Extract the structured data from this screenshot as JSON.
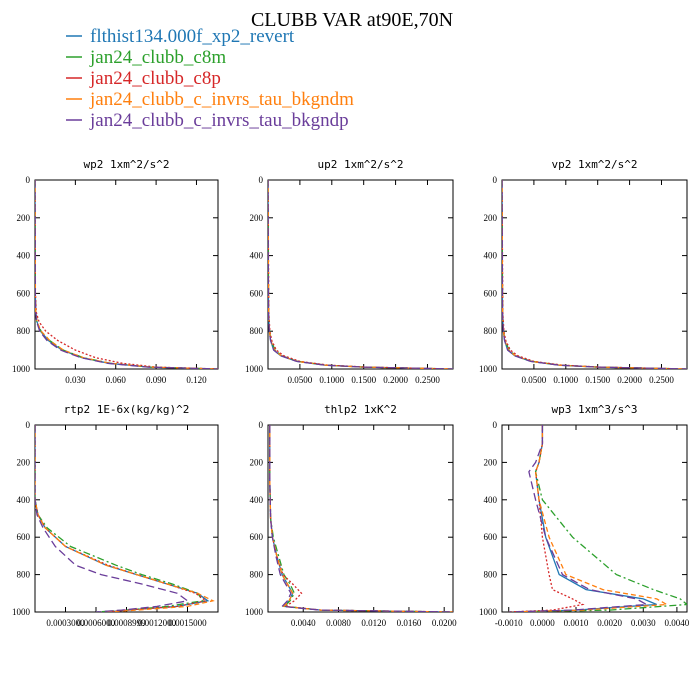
{
  "title": "CLUBB VAR at90E,70N",
  "legend": [
    {
      "label": "flthist134.000f_xp2_revert",
      "color": "#1f77b4",
      "dash": "solid"
    },
    {
      "label": "jan24_clubb_c8m",
      "color": "#2ca02c",
      "dash": "dashdot"
    },
    {
      "label": "jan24_clubb_c8p",
      "color": "#d62728",
      "dash": "dotted"
    },
    {
      "label": "jan24_clubb_c_invrs_tau_bkgndm",
      "color": "#ff7f0e",
      "dash": "dashed"
    },
    {
      "label": "jan24_clubb_c_invrs_tau_bkgndp",
      "color": "#6a3d9a",
      "dash": "longdash"
    }
  ],
  "chart_data": [
    {
      "type": "line",
      "title": "wp2  1xm^2/s^2",
      "xlim": [
        0,
        0.136
      ],
      "ylim": [
        1000,
        0
      ],
      "y_reversed": true,
      "xticks": [
        0.03,
        0.06,
        0.09,
        0.12
      ],
      "xtick_labels": [
        "0.030",
        "0.060",
        "0.090",
        "0.120"
      ],
      "yticks": [
        0,
        200,
        400,
        600,
        800,
        1000
      ],
      "ytick_labels": [
        "0",
        "200",
        "400",
        "600",
        "800",
        "1000"
      ],
      "series": [
        {
          "y": [
            0,
            600,
            700,
            750,
            800,
            850,
            900,
            940,
            970,
            990,
            1000
          ],
          "x": [
            0.0,
            0.0002,
            0.0006,
            0.0015,
            0.004,
            0.01,
            0.02,
            0.035,
            0.055,
            0.085,
            0.136
          ]
        },
        {
          "y": [
            0,
            600,
            700,
            750,
            800,
            850,
            900,
            940,
            970,
            990,
            1000
          ],
          "x": [
            0.0,
            0.0002,
            0.0006,
            0.0015,
            0.0045,
            0.011,
            0.021,
            0.036,
            0.056,
            0.086,
            0.136
          ]
        },
        {
          "y": [
            0,
            600,
            700,
            750,
            800,
            850,
            900,
            940,
            970,
            990,
            1000
          ],
          "x": [
            0.0,
            0.0003,
            0.001,
            0.003,
            0.008,
            0.017,
            0.03,
            0.045,
            0.065,
            0.09,
            0.136
          ]
        },
        {
          "y": [
            0,
            600,
            700,
            750,
            800,
            850,
            900,
            940,
            970,
            990,
            1000
          ],
          "x": [
            0.0,
            0.0002,
            0.0006,
            0.0015,
            0.0045,
            0.011,
            0.021,
            0.036,
            0.056,
            0.086,
            0.136
          ]
        },
        {
          "y": [
            0,
            600,
            700,
            750,
            800,
            850,
            900,
            940,
            970,
            990,
            1000
          ],
          "x": [
            0.0,
            0.0002,
            0.0005,
            0.0013,
            0.0035,
            0.009,
            0.019,
            0.034,
            0.054,
            0.084,
            0.136
          ]
        }
      ]
    },
    {
      "type": "line",
      "title": "up2  1xm^2/s^2",
      "xlim": [
        0,
        0.29
      ],
      "ylim": [
        1000,
        0
      ],
      "y_reversed": true,
      "xticks": [
        0.05,
        0.1,
        0.15,
        0.2,
        0.25
      ],
      "xtick_labels": [
        "0.0500",
        "0.1000",
        "0.1500",
        "0.2000",
        "0.2500"
      ],
      "yticks": [
        0,
        200,
        400,
        600,
        800,
        1000
      ],
      "ytick_labels": [
        "0",
        "200",
        "400",
        "600",
        "800",
        "1000"
      ],
      "series": [
        {
          "y": [
            0,
            700,
            800,
            850,
            900,
            930,
            960,
            980,
            990,
            1000
          ],
          "x": [
            0.0,
            0.0008,
            0.002,
            0.004,
            0.009,
            0.02,
            0.045,
            0.09,
            0.15,
            0.29
          ]
        },
        {
          "y": [
            0,
            700,
            800,
            850,
            900,
            930,
            960,
            980,
            990,
            1000
          ],
          "x": [
            0.0,
            0.001,
            0.0025,
            0.005,
            0.011,
            0.022,
            0.047,
            0.092,
            0.15,
            0.29
          ]
        },
        {
          "y": [
            0,
            700,
            800,
            850,
            900,
            930,
            960,
            980,
            990,
            1000
          ],
          "x": [
            0.0,
            0.0012,
            0.003,
            0.006,
            0.013,
            0.025,
            0.05,
            0.095,
            0.155,
            0.29
          ]
        },
        {
          "y": [
            0,
            700,
            800,
            850,
            900,
            930,
            960,
            980,
            990,
            1000
          ],
          "x": [
            0.0,
            0.0009,
            0.0022,
            0.0045,
            0.01,
            0.021,
            0.046,
            0.091,
            0.15,
            0.29
          ]
        },
        {
          "y": [
            0,
            700,
            800,
            850,
            900,
            930,
            960,
            980,
            990,
            1000
          ],
          "x": [
            0.0,
            0.0008,
            0.002,
            0.004,
            0.009,
            0.02,
            0.045,
            0.09,
            0.15,
            0.29
          ]
        }
      ]
    },
    {
      "type": "line",
      "title": "vp2  1xm^2/s^2",
      "xlim": [
        0,
        0.29
      ],
      "ylim": [
        1000,
        0
      ],
      "y_reversed": true,
      "xticks": [
        0.05,
        0.1,
        0.15,
        0.2,
        0.25
      ],
      "xtick_labels": [
        "0.0500",
        "0.1000",
        "0.1500",
        "0.2000",
        "0.2500"
      ],
      "yticks": [
        0,
        200,
        400,
        600,
        800,
        1000
      ],
      "ytick_labels": [
        "0",
        "200",
        "400",
        "600",
        "800",
        "1000"
      ],
      "series": [
        {
          "y": [
            0,
            700,
            800,
            850,
            900,
            930,
            960,
            980,
            990,
            1000
          ],
          "x": [
            0.0,
            0.0008,
            0.002,
            0.004,
            0.009,
            0.02,
            0.045,
            0.09,
            0.15,
            0.29
          ]
        },
        {
          "y": [
            0,
            700,
            800,
            850,
            900,
            930,
            960,
            980,
            990,
            1000
          ],
          "x": [
            0.0,
            0.001,
            0.0025,
            0.005,
            0.011,
            0.022,
            0.047,
            0.092,
            0.15,
            0.29
          ]
        },
        {
          "y": [
            0,
            700,
            800,
            850,
            900,
            930,
            960,
            980,
            990,
            1000
          ],
          "x": [
            0.0,
            0.0012,
            0.003,
            0.006,
            0.013,
            0.025,
            0.05,
            0.095,
            0.155,
            0.29
          ]
        },
        {
          "y": [
            0,
            700,
            800,
            850,
            900,
            930,
            960,
            980,
            990,
            1000
          ],
          "x": [
            0.0,
            0.0009,
            0.0022,
            0.0045,
            0.01,
            0.021,
            0.046,
            0.091,
            0.15,
            0.29
          ]
        },
        {
          "y": [
            0,
            700,
            800,
            850,
            900,
            930,
            960,
            980,
            990,
            1000
          ],
          "x": [
            0.0,
            0.0008,
            0.002,
            0.004,
            0.009,
            0.02,
            0.045,
            0.09,
            0.15,
            0.29
          ]
        }
      ]
    },
    {
      "type": "line",
      "title": "rtp2  1E-6x(kg/kg)^2",
      "xlim": [
        0,
        0.0018
      ],
      "ylim": [
        1000,
        0
      ],
      "y_reversed": true,
      "xticks": [
        0.0003,
        0.0006,
        0.0009,
        0.0012,
        0.0015
      ],
      "xtick_labels": [
        "0.0003000",
        "0.0006000",
        "0.0008999",
        "0.0012000",
        "0.0015000"
      ],
      "yticks": [
        0,
        200,
        400,
        600,
        800,
        1000
      ],
      "ytick_labels": [
        "0",
        "200",
        "400",
        "600",
        "800",
        "1000"
      ],
      "series": [
        {
          "y": [
            0,
            400,
            480,
            550,
            650,
            750,
            800,
            850,
            900,
            940,
            970,
            990,
            1000
          ],
          "x": [
            0.0,
            0.0,
            3e-05,
            0.0001,
            0.0003,
            0.0007,
            0.001,
            0.0013,
            0.0016,
            0.0017,
            0.0014,
            0.0009,
            0.0007
          ]
        },
        {
          "y": [
            0,
            400,
            480,
            550,
            650,
            750,
            800,
            850,
            900,
            940,
            970,
            990,
            1000
          ],
          "x": [
            0.0,
            0.0,
            3e-05,
            0.00012,
            0.00035,
            0.0008,
            0.00105,
            0.00135,
            0.0016,
            0.00165,
            0.0013,
            0.0009,
            0.0006
          ]
        },
        {
          "y": [
            0,
            400,
            480,
            550,
            650,
            750,
            800,
            850,
            900,
            940,
            970,
            990,
            1000
          ],
          "x": [
            0.0,
            0.0,
            3e-05,
            0.0001,
            0.0003,
            0.00072,
            0.001,
            0.0013,
            0.00158,
            0.00168,
            0.0014,
            0.0009,
            0.0007
          ]
        },
        {
          "y": [
            0,
            400,
            480,
            550,
            650,
            750,
            800,
            850,
            900,
            940,
            970,
            990,
            1000
          ],
          "x": [
            0.0,
            0.0,
            3e-05,
            0.0001,
            0.0003,
            0.0007,
            0.001,
            0.0013,
            0.0016,
            0.00175,
            0.0015,
            0.001,
            0.0007
          ]
        },
        {
          "y": [
            0,
            400,
            480,
            550,
            650,
            750,
            800,
            850,
            900,
            940,
            970,
            990,
            1000
          ],
          "x": [
            0.0,
            0.0,
            2e-05,
            8e-05,
            0.0002,
            0.0004,
            0.00065,
            0.00105,
            0.0014,
            0.0015,
            0.0012,
            0.00085,
            0.0006
          ]
        }
      ]
    },
    {
      "type": "line",
      "title": "thlp2  1xK^2",
      "xlim": [
        0,
        0.021
      ],
      "ylim": [
        1000,
        0
      ],
      "y_reversed": true,
      "xticks": [
        0.004,
        0.008,
        0.012,
        0.016,
        0.02
      ],
      "xtick_labels": [
        "0.0040",
        "0.0080",
        "0.0120",
        "0.0160",
        "0.0200"
      ],
      "yticks": [
        0,
        200,
        400,
        600,
        800,
        1000
      ],
      "ytick_labels": [
        "0",
        "200",
        "400",
        "600",
        "800",
        "1000"
      ],
      "series": [
        {
          "y": [
            0,
            100,
            300,
            500,
            600,
            700,
            800,
            850,
            900,
            940,
            970,
            990,
            1000
          ],
          "x": [
            0.0002,
            0.0002,
            0.0002,
            0.0003,
            0.0005,
            0.001,
            0.0016,
            0.0022,
            0.0028,
            0.0024,
            0.0018,
            0.006,
            0.021
          ]
        },
        {
          "y": [
            0,
            100,
            300,
            500,
            600,
            700,
            800,
            850,
            900,
            940,
            970,
            990,
            1000
          ],
          "x": [
            0.0002,
            0.0002,
            0.0002,
            0.0003,
            0.0006,
            0.0012,
            0.0018,
            0.0025,
            0.003,
            0.0025,
            0.0019,
            0.006,
            0.021
          ]
        },
        {
          "y": [
            0,
            100,
            300,
            500,
            600,
            700,
            800,
            850,
            900,
            940,
            970,
            990,
            1000
          ],
          "x": [
            0.0002,
            0.0002,
            0.0002,
            0.0003,
            0.0005,
            0.001,
            0.0017,
            0.0028,
            0.0038,
            0.003,
            0.002,
            0.006,
            0.021
          ]
        },
        {
          "y": [
            0,
            100,
            300,
            500,
            600,
            700,
            800,
            850,
            900,
            940,
            970,
            990,
            1000
          ],
          "x": [
            0.0002,
            0.0002,
            0.0002,
            0.0003,
            0.0005,
            0.001,
            0.0016,
            0.0022,
            0.0028,
            0.0024,
            0.0018,
            0.006,
            0.021
          ]
        },
        {
          "y": [
            0,
            100,
            300,
            500,
            600,
            700,
            800,
            850,
            900,
            940,
            970,
            990,
            1000
          ],
          "x": [
            0.0002,
            0.0002,
            0.0002,
            0.0003,
            0.0005,
            0.0009,
            0.0014,
            0.002,
            0.0026,
            0.0022,
            0.0016,
            0.006,
            0.021
          ]
        }
      ]
    },
    {
      "type": "line",
      "title": "wp3  1xm^3/s^3",
      "xlim": [
        -0.0012,
        0.0043
      ],
      "ylim": [
        1000,
        0
      ],
      "y_reversed": true,
      "xticks": [
        -0.001,
        0.0,
        0.001,
        0.002,
        0.003,
        0.004
      ],
      "xtick_labels": [
        "-0.0010",
        "0.0000",
        "0.0010",
        "0.0020",
        "0.0030",
        "0.0040"
      ],
      "yticks": [
        0,
        200,
        400,
        600,
        800,
        1000
      ],
      "ytick_labels": [
        "0",
        "200",
        "400",
        "600",
        "800",
        "1000"
      ],
      "series": [
        {
          "y": [
            0,
            100,
            200,
            250,
            400,
            600,
            800,
            880,
            930,
            960,
            990,
            1000
          ],
          "x": [
            0.0,
            0.0,
            -0.0001,
            -0.0002,
            -0.0001,
            0.0001,
            0.0005,
            0.0013,
            0.003,
            0.0034,
            0.001,
            -0.001
          ]
        },
        {
          "y": [
            0,
            100,
            200,
            250,
            400,
            600,
            800,
            880,
            930,
            960,
            990,
            1000
          ],
          "x": [
            0.0,
            0.0,
            -0.0001,
            -0.0002,
            0.0,
            0.0009,
            0.0022,
            0.0033,
            0.0041,
            0.0043,
            0.002,
            -0.001
          ]
        },
        {
          "y": [
            0,
            100,
            200,
            250,
            400,
            600,
            800,
            880,
            930,
            960,
            990,
            1000
          ],
          "x": [
            0.0,
            0.0,
            -0.0001,
            -0.0002,
            -0.0001,
            0.0,
            0.0002,
            0.0003,
            0.0009,
            0.0012,
            0.0003,
            -0.001
          ]
        },
        {
          "y": [
            0,
            100,
            200,
            250,
            400,
            600,
            800,
            880,
            930,
            960,
            990,
            1000
          ],
          "x": [
            0.0,
            0.0,
            -0.0001,
            -0.0002,
            -0.0001,
            0.0002,
            0.0007,
            0.0018,
            0.0034,
            0.0037,
            0.0012,
            -0.001
          ]
        },
        {
          "y": [
            0,
            100,
            200,
            250,
            400,
            600,
            800,
            880,
            930,
            960,
            990,
            1000
          ],
          "x": [
            0.0,
            0.0,
            -0.0002,
            -0.0004,
            -0.0002,
            0.0001,
            0.0006,
            0.0014,
            0.0028,
            0.0031,
            0.0009,
            -0.001
          ]
        }
      ]
    }
  ]
}
